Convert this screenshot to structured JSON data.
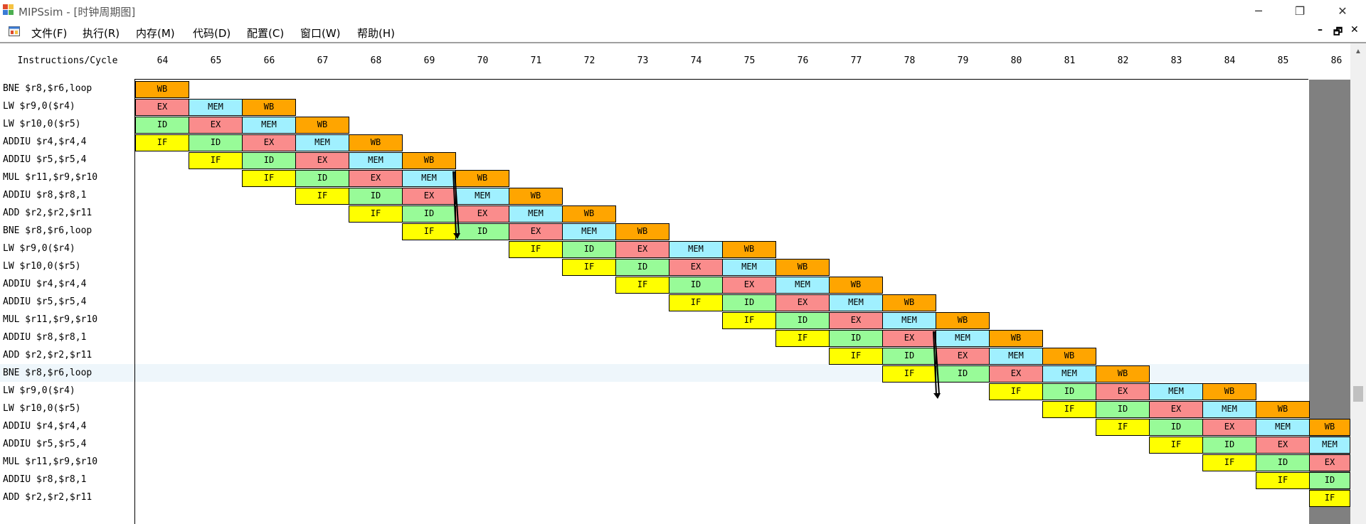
{
  "window": {
    "title": "MIPSsim - [时钟周期图]",
    "controls": {
      "minimize": "─",
      "restore": "❐",
      "close": "✕"
    }
  },
  "menubar": {
    "items": [
      "文件(F)",
      "执行(R)",
      "内存(M)",
      "代码(D)",
      "配置(C)",
      "窗口(W)",
      "帮助(H)"
    ],
    "mdi_controls": {
      "minimize": "–",
      "restore": "🗗",
      "close": "✕"
    }
  },
  "diagram": {
    "header_label": "Instructions/Cycle",
    "cycles": [
      "64",
      "65",
      "66",
      "67",
      "68",
      "69",
      "70",
      "71",
      "72",
      "73",
      "74",
      "75",
      "76",
      "77",
      "78",
      "79",
      "80",
      "81",
      "82",
      "83",
      "84",
      "85",
      "86"
    ],
    "stage_colors": {
      "IF": "#ffff00",
      "ID": "#98fb98",
      "EX": "#fa8c8c",
      "MEM": "#a0f0ff",
      "WB": "#ffa500"
    },
    "highlighted_row": 16,
    "rows": [
      {
        "instr": "BNE $r8,$r6,loop",
        "first_stage": 4,
        "start_cycle": 0
      },
      {
        "instr": "LW $r9,0($r4)",
        "first_stage": 2,
        "start_cycle": 0
      },
      {
        "instr": "LW $r10,0($r5)",
        "first_stage": 1,
        "start_cycle": 0
      },
      {
        "instr": "ADDIU $r4,$r4,4",
        "first_stage": 0,
        "start_cycle": 0
      },
      {
        "instr": "ADDIU $r5,$r5,4",
        "first_stage": 0,
        "start_cycle": 1
      },
      {
        "instr": "MUL $r11,$r9,$r10",
        "first_stage": 0,
        "start_cycle": 2
      },
      {
        "instr": "ADDIU $r8,$r8,1",
        "first_stage": 0,
        "start_cycle": 3
      },
      {
        "instr": "ADD $r2,$r2,$r11",
        "first_stage": 0,
        "start_cycle": 4
      },
      {
        "instr": "BNE $r8,$r6,loop",
        "first_stage": 0,
        "start_cycle": 5
      },
      {
        "instr": "LW $r9,0($r4)",
        "first_stage": 0,
        "start_cycle": 7
      },
      {
        "instr": "LW $r10,0($r5)",
        "first_stage": 0,
        "start_cycle": 8
      },
      {
        "instr": "ADDIU $r4,$r4,4",
        "first_stage": 0,
        "start_cycle": 9
      },
      {
        "instr": "ADDIU $r5,$r5,4",
        "first_stage": 0,
        "start_cycle": 10
      },
      {
        "instr": "MUL $r11,$r9,$r10",
        "first_stage": 0,
        "start_cycle": 11
      },
      {
        "instr": "ADDIU $r8,$r8,1",
        "first_stage": 0,
        "start_cycle": 12
      },
      {
        "instr": "ADD $r2,$r2,$r11",
        "first_stage": 0,
        "start_cycle": 13
      },
      {
        "instr": "BNE $r8,$r6,loop",
        "first_stage": 0,
        "start_cycle": 14
      },
      {
        "instr": "LW $r9,0($r4)",
        "first_stage": 0,
        "start_cycle": 16
      },
      {
        "instr": "LW $r10,0($r5)",
        "first_stage": 0,
        "start_cycle": 17
      },
      {
        "instr": "ADDIU $r4,$r4,4",
        "first_stage": 0,
        "start_cycle": 18
      },
      {
        "instr": "ADDIU $r5,$r5,4",
        "first_stage": 0,
        "start_cycle": 19
      },
      {
        "instr": "MUL $r11,$r9,$r10",
        "first_stage": 0,
        "start_cycle": 20
      },
      {
        "instr": "ADDIU $r8,$r8,1",
        "first_stage": 0,
        "start_cycle": 21
      },
      {
        "instr": "ADD $r2,$r2,$r11",
        "first_stage": 0,
        "start_cycle": 22
      }
    ],
    "stall_arrows": [
      {
        "from_row": 5,
        "to_row": 8,
        "cycle": 6
      },
      {
        "from_row": 14,
        "to_row": 17,
        "cycle": 15
      }
    ]
  }
}
